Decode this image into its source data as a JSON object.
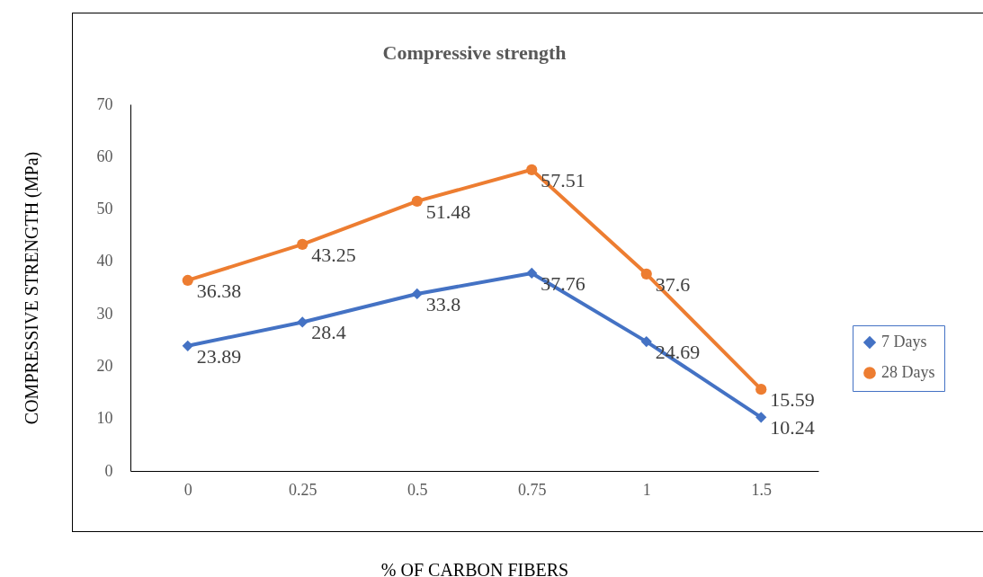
{
  "chart_data": {
    "type": "line",
    "title": "Compressive strength",
    "xlabel": "% OF CARBON FIBERS",
    "ylabel": "COMPRESSIVE STRENGTH (MPa)",
    "categories": [
      "0",
      "0.25",
      "0.5",
      "0.75",
      "1",
      "1.5"
    ],
    "series": [
      {
        "name": "7 Days",
        "color": "#4472c4",
        "marker": "diamond",
        "values": [
          23.89,
          28.4,
          33.8,
          37.76,
          24.69,
          10.24
        ]
      },
      {
        "name": "28 Days",
        "color": "#ed7d31",
        "marker": "circle",
        "values": [
          36.38,
          43.25,
          51.48,
          57.51,
          37.6,
          15.59
        ]
      }
    ],
    "ylim": [
      0,
      70
    ],
    "yticks": [
      0,
      10,
      20,
      30,
      40,
      50,
      60,
      70
    ],
    "grid": false,
    "legend": "right",
    "data_labels": true
  }
}
